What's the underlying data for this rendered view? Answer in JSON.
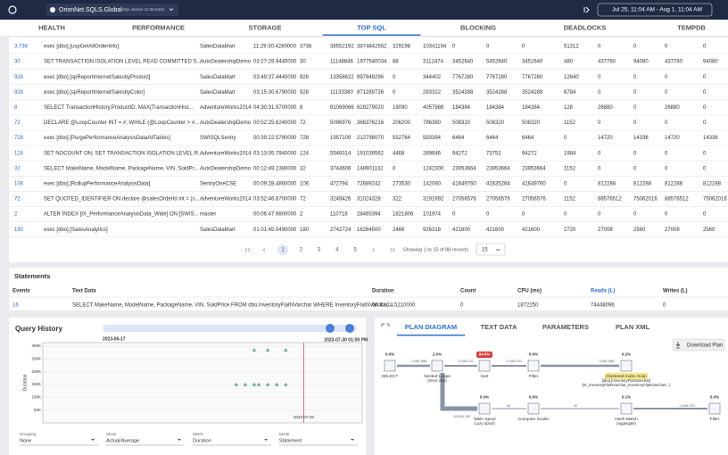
{
  "header": {
    "server": "OrionNet.SQLS.Global",
    "version": "SQL Server 12.00.6444",
    "date_range": "Jul 25, 11:04 AM - Aug 1, 11:04 AM"
  },
  "tabs": [
    "HEALTH",
    "PERFORMANCE",
    "STORAGE",
    "TOP SQL",
    "BLOCKING",
    "DEADLOCKS",
    "TEMPDB"
  ],
  "active_tab": 3,
  "top_sql": {
    "rows": [
      [
        "3,738",
        "exec [dbo].[uspGetAllOrderInfo]",
        "SalesDataMart",
        "11:29:30.4280000",
        "3738",
        "38552192",
        "3874842562",
        "329198",
        "10341194",
        "0",
        "0",
        "0",
        "51312",
        "0",
        "0",
        "0",
        "0"
      ],
      [
        "30",
        "SET TRANSACTION ISOLATION LEVEL READ COMMITTED S...",
        "AutoDealershipDemo",
        "03:27:29.9440000",
        "30",
        "11148846",
        "1977540034",
        "88",
        "3112474",
        "3452640",
        "5452640",
        "3452640",
        "480",
        "437760",
        "94080",
        "437760",
        "94080"
      ],
      [
        "928",
        "exec [dbo].[spReportInternetSalesbyProduct]",
        "SalesDataMart",
        "03:49:37.4440000",
        "928",
        "13358622",
        "897848296",
        "0",
        "344402",
        "7767280",
        "7767280",
        "7767280",
        "12640",
        "0",
        "0",
        "0",
        "0"
      ],
      [
        "928",
        "exec [dbo].[spReportInternetSalesbyColor]",
        "SalesDataMart",
        "03:15:30.6790000",
        "928",
        "11133380",
        "871289726",
        "0",
        "293322",
        "3524288",
        "3524288",
        "3524288",
        "6784",
        "0",
        "0",
        "0",
        "0"
      ],
      [
        "8",
        "SELECT TransactionHistory.ProductID, MAX(TransactionHist...",
        "AdventureWorks2014",
        "04:30:31.9700000",
        "8",
        "81069066",
        "628279020",
        "19090",
        "4057988",
        "184384",
        "184384",
        "184384",
        "128",
        "26880",
        "0",
        "26880",
        "0"
      ],
      [
        "72",
        "DECLARE @LoopCounter INT = #; WHILE (@LoopCounter > #...",
        "AutoDealershipDemo",
        "00:52:25.6240000",
        "72",
        "5096976",
        "366376216",
        "206200",
        "786380",
        "508320",
        "508320",
        "508320",
        "1152",
        "0",
        "0",
        "0",
        "0"
      ],
      [
        "728",
        "exec [dbo].[PurgePerformanceAnalysisDataAllTables]",
        "SWISQLSentry",
        "00:39:22.5780000",
        "728",
        "1957109",
        "212798070",
        "552764",
        "593394",
        "6464",
        "6464",
        "6464",
        "0",
        "14720",
        "14336",
        "14720",
        "14336"
      ],
      [
        "124",
        "SET NOCOUNT ON; SET TRANSACTION ISOLATION LEVEL R...",
        "AdventureWorks2014",
        "03:13:05.7940000",
        "124",
        "5549314",
        "191039562",
        "4468",
        "289646",
        "94272",
        "73752",
        "94272",
        "1984",
        "0",
        "0",
        "0",
        "0"
      ],
      [
        "32",
        "SELECT MakeName, ModelName, PackageName, VIN, SoldPr...",
        "AutoDealershipDemo",
        "00:12:49.2380000",
        "32",
        "3744606",
        "148901132",
        "0",
        "1242300",
        "23953664",
        "23953664",
        "23953664",
        "1152",
        "0",
        "0",
        "0",
        "0"
      ],
      [
        "106",
        "exec [dbo].[RollupPerformanceAnalysisData]",
        "SentryOneCSE",
        "00:09:28.4860000",
        "106",
        "472794",
        "72689242",
        "273530",
        "142060",
        "41649760",
        "41635264",
        "41649760",
        "0",
        "812288",
        "812288",
        "812288",
        "812288"
      ],
      [
        "72",
        "SET QUOTED_IDENTIFIER ON declare @salesOrderId int = (s...",
        "AdventureWorks2014",
        "03:52:46.8700000",
        "72",
        "3249426",
        "31024328",
        "322",
        "3191692",
        "27056576",
        "27056576",
        "27056576",
        "1152",
        "88576512",
        "75062016",
        "88576512",
        "75062016"
      ],
      [
        "2",
        "ALTER INDEX [IX_PerformanceAnalysisData_Wide] ON [SWIS...",
        "master",
        "00:06:47.9800000",
        "2",
        "110718",
        "28465394",
        "1821806",
        "101974",
        "0",
        "0",
        "0",
        "0",
        "0",
        "0",
        "0",
        "0"
      ],
      [
        "180",
        "exec [dbo].[SalesAnalytics]",
        "SalesDataMart",
        "01:01:45.5490000",
        "180",
        "2742724",
        "16264500",
        "2466",
        "926318",
        "421600",
        "421600",
        "421600",
        "2720",
        "27008",
        "2560",
        "27008",
        "2560"
      ]
    ]
  },
  "pagination": {
    "pages": [
      "1",
      "2",
      "3",
      "4",
      "5"
    ],
    "summary": "Showing 1 to 15 of 88 records",
    "page_size": "15"
  },
  "statements": {
    "title": "Statements",
    "columns": [
      "Events",
      "Text Data",
      "Duration",
      "Count",
      "CPU (ms)",
      "Reads (L)",
      "Writes (L)"
    ],
    "rows": [
      [
        "16",
        "SELECT MakeName, ModelName, PackageName, VIN, SoldPrice FROM dbo.InventoryFlatNVarchar WHERE InventoryFlatNVarchar....",
        "00:41:24.5210000",
        "0",
        "1872250",
        "74448096",
        "0"
      ]
    ]
  },
  "query_history": {
    "title": "Query History",
    "range_start": "2023-06-17",
    "range_end": "2023-07-30 01:59 PM",
    "chart_data": {
      "type": "scatter",
      "y_label": "Duration",
      "x": [
        "2023-07-19",
        "2023-07-22",
        "2023-07-26",
        "2023-07-15",
        "2023-07-17",
        "2023-07-19",
        "2023-07-20",
        "2023-07-22",
        "2023-07-24",
        "2023-07-26"
      ],
      "values": [
        285000,
        285000,
        285000,
        150000,
        150000,
        150000,
        150000,
        150000,
        150000,
        150000
      ],
      "color": "#5aa58d",
      "xlim": [
        "2023-06-02",
        "2023-08-12"
      ],
      "ylim": [
        0,
        300000
      ],
      "yticks": [
        {
          "value": 50000,
          "label": "50K"
        },
        {
          "value": 100000,
          "label": "100K"
        },
        {
          "value": 150000,
          "label": "150K"
        },
        {
          "value": 200000,
          "label": "200K"
        },
        {
          "value": 250000,
          "label": "250K"
        },
        {
          "value": 300000,
          "label": "300K"
        }
      ],
      "marker": "2023-07-30",
      "marker_color": "#e05050",
      "grid": true
    },
    "filters": [
      {
        "label": "Grouping",
        "value": "None"
      },
      {
        "label": "Show",
        "value": "Actual/Average"
      },
      {
        "label": "Metric",
        "value": "Duration"
      },
      {
        "label": "Mode",
        "value": "Statement"
      }
    ]
  },
  "plan": {
    "tabs": [
      "PLAN DIAGRAM",
      "TEXT DATA",
      "PARAMETERS",
      "PLAN XML"
    ],
    "active_tab": 0,
    "download": "Download Plan",
    "nodes": [
      {
        "pct": "0.0%",
        "label": "SELECT"
      },
      {
        "pct": "2.0%",
        "label": "Nested Loops",
        "sub": "(Inner Join)"
      },
      {
        "pct": "94.6%",
        "label": "Sort"
      },
      {
        "pct": "0.0%",
        "label": "Filter"
      },
      {
        "pct": "0.2%",
        "label": "Clustered Index Scan",
        "sub": "[dbo].[InventoryFlatNVarchar]",
        "sub2": "[IX_InventoryFlatNVarchar_InventoryFlatNVarchart...]"
      },
      {
        "pct": "0.0%",
        "label": "Table Spool",
        "sub": "(Lazy Spool)"
      },
      {
        "pct": "0.0%",
        "label": "Compute Scalar"
      },
      {
        "pct": "0.1%",
        "label": "Hash Match",
        "sub": "(Aggregate)"
      },
      {
        "pct": "0.0%",
        "label": "Filter"
      }
    ],
    "edges": [
      "3,067,566",
      "2,245,170",
      "2,245,170",
      "3,067,566",
      "94,291,192",
      "42",
      "42",
      "2,245,170"
    ]
  }
}
